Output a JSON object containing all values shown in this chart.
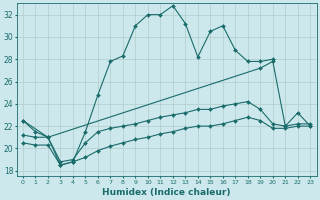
{
  "xlabel": "Humidex (Indice chaleur)",
  "bg_color": "#cce8ec",
  "grid_color": "#b0cccc",
  "line_color": "#1a6b6b",
  "xlim": [
    -0.5,
    23.5
  ],
  "ylim": [
    17.5,
    33.0
  ],
  "yticks": [
    18,
    20,
    22,
    24,
    26,
    28,
    30,
    32
  ],
  "xticks": [
    0,
    1,
    2,
    3,
    4,
    5,
    6,
    7,
    8,
    9,
    10,
    11,
    12,
    13,
    14,
    15,
    16,
    17,
    18,
    19,
    20,
    21,
    22,
    23
  ],
  "series": [
    {
      "x": [
        0,
        1,
        2,
        3,
        4,
        5,
        6,
        7,
        8,
        9,
        10,
        11,
        12,
        13,
        14,
        15,
        16,
        17,
        18,
        19,
        20
      ],
      "y": [
        22.5,
        21.5,
        21.0,
        18.5,
        18.8,
        21.5,
        24.8,
        27.8,
        28.3,
        31.0,
        32.0,
        32.0,
        32.8,
        31.2,
        28.2,
        30.5,
        31.0,
        28.8,
        27.8,
        27.8,
        28.0
      ]
    },
    {
      "x": [
        0,
        2,
        19,
        20,
        21,
        22,
        23
      ],
      "y": [
        22.5,
        21.0,
        27.2,
        27.8,
        22.0,
        23.2,
        22.0
      ]
    },
    {
      "x": [
        0,
        1,
        2,
        3,
        4,
        5,
        6,
        7,
        8,
        9,
        10,
        11,
        12,
        13,
        14,
        15,
        16,
        17,
        18,
        19,
        20,
        21,
        22,
        23
      ],
      "y": [
        21.2,
        21.0,
        21.0,
        18.8,
        19.0,
        20.5,
        21.5,
        21.8,
        22.0,
        22.2,
        22.5,
        22.8,
        23.0,
        23.2,
        23.5,
        23.5,
        23.8,
        24.0,
        24.2,
        23.5,
        22.2,
        22.0,
        22.2,
        22.2
      ]
    },
    {
      "x": [
        0,
        1,
        2,
        3,
        4,
        5,
        6,
        7,
        8,
        9,
        10,
        11,
        12,
        13,
        14,
        15,
        16,
        17,
        18,
        19,
        20,
        21,
        22,
        23
      ],
      "y": [
        20.5,
        20.3,
        20.3,
        18.5,
        18.8,
        19.2,
        19.8,
        20.2,
        20.5,
        20.8,
        21.0,
        21.3,
        21.5,
        21.8,
        22.0,
        22.0,
        22.2,
        22.5,
        22.8,
        22.5,
        21.8,
        21.8,
        22.0,
        22.0
      ]
    }
  ]
}
